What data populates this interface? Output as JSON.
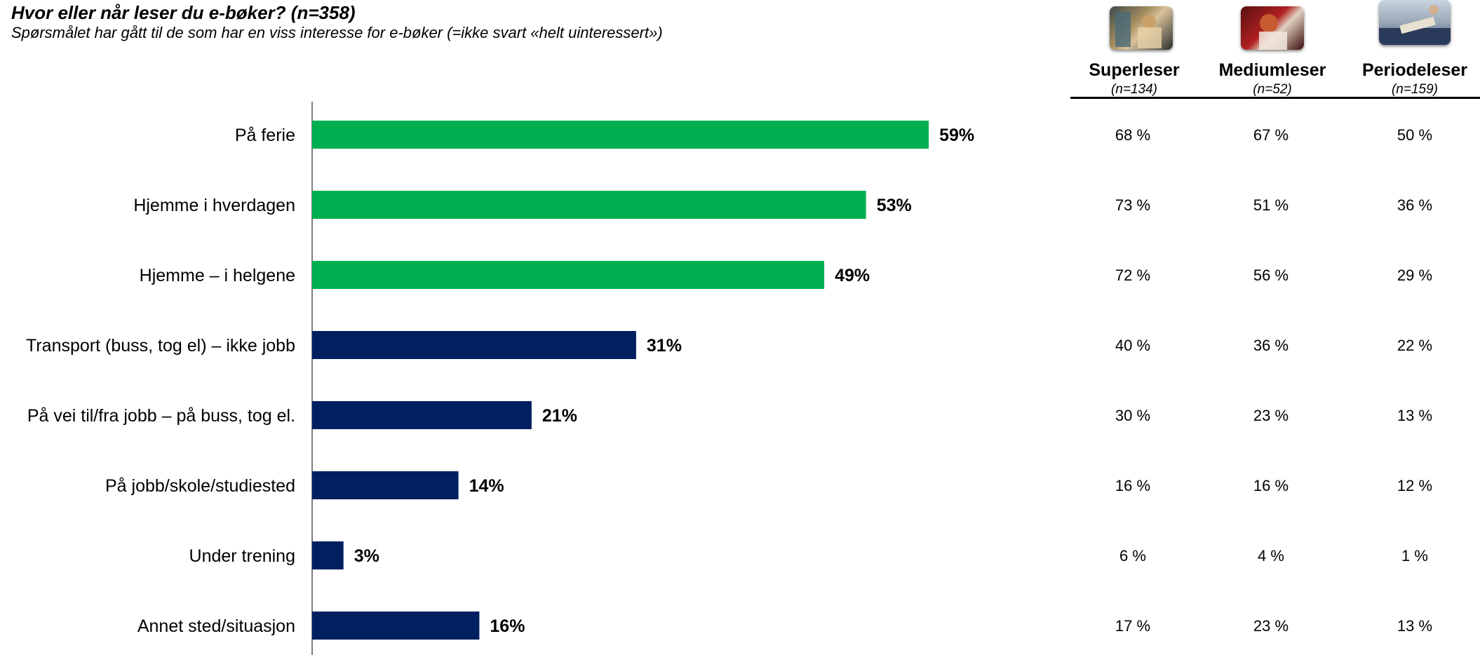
{
  "title": "Hvor eller når leser du e-bøker? (n=358)",
  "subtitle": "Spørsmålet har gått til de som har en viss interesse for e-bøker (=ikke svart «helt uinteressert»)",
  "colors": {
    "green": "#00B050",
    "navy": "#002060",
    "axis": "#7f7f7f"
  },
  "chart_data": {
    "type": "bar",
    "orientation": "horizontal",
    "categories": [
      "På ferie",
      "Hjemme i hverdagen",
      "Hjemme – i helgene",
      "Transport (buss, tog el) – ikke jobb",
      "På vei til/fra jobb – på buss, tog el.",
      "På jobb/skole/studiested",
      "Under trening",
      "Annet sted/situasjon"
    ],
    "values": [
      59,
      53,
      49,
      31,
      21,
      14,
      3,
      16
    ],
    "value_labels": [
      "59%",
      "53%",
      "49%",
      "31%",
      "21%",
      "14%",
      "3%",
      "16%"
    ],
    "bar_colors": [
      "green",
      "green",
      "green",
      "navy",
      "navy",
      "navy",
      "navy",
      "navy"
    ],
    "xlim": [
      0,
      100
    ],
    "grid": false
  },
  "segments": [
    {
      "name": "Superleser",
      "n": "(n=134)",
      "photo_icon": "reader-photo-icon",
      "values": [
        "68 %",
        "73 %",
        "72 %",
        "40 %",
        "30 %",
        "16 %",
        "6 %",
        "17 %"
      ]
    },
    {
      "name": "Mediumleser",
      "n": "(n=52)",
      "photo_icon": "reader-photo-icon",
      "values": [
        "67 %",
        "51 %",
        "56 %",
        "36 %",
        "23 %",
        "16 %",
        "4 %",
        "23 %"
      ]
    },
    {
      "name": "Periodeleser",
      "n": "(n=159)",
      "photo_icon": "reader-photo-icon",
      "values": [
        "50 %",
        "36 %",
        "29 %",
        "22 %",
        "13 %",
        "12 %",
        "1 %",
        "13 %"
      ]
    }
  ]
}
